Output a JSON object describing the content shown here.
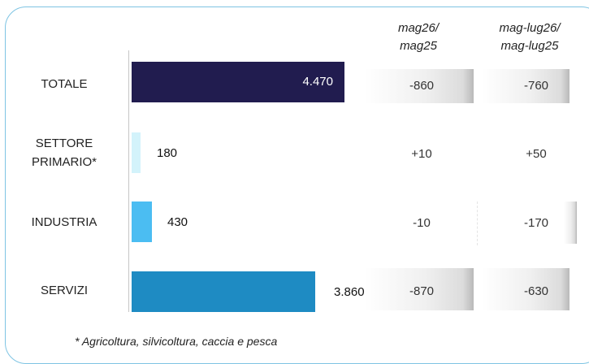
{
  "chart_data": {
    "type": "bar",
    "orientation": "horizontal",
    "categories": [
      "TOTALE",
      "SETTORE\nPRIMARIO*",
      "INDUSTRIA",
      "SERVIZI"
    ],
    "values": [
      4470,
      180,
      430,
      3860
    ],
    "value_labels": [
      "4.470",
      "180",
      "430",
      "3.860"
    ],
    "bar_colors": [
      "#211c4f",
      "#d3f3fb",
      "#4bbdf2",
      "#1e8bc3"
    ],
    "table": {
      "columns": [
        "mag26/\nmag25",
        "mag-lug26/\nmag-lug25"
      ],
      "rows": [
        [
          "-860",
          "-760"
        ],
        [
          "+10",
          "+50"
        ],
        [
          "-10",
          "-170"
        ],
        [
          "-870",
          "-630"
        ]
      ]
    },
    "footnote": "* Agricoltura, silvicoltura, caccia e pesca"
  }
}
